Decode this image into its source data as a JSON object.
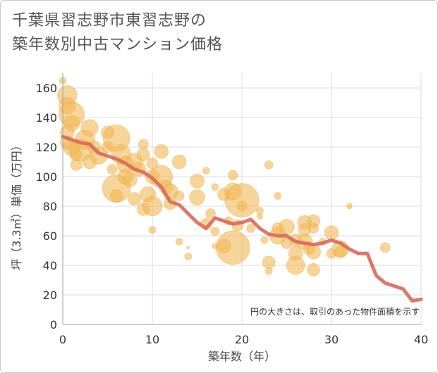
{
  "title": "千葉県習志野市東習志野の\n築年数別中古マンション価格",
  "chart_data": {
    "type": "scatter",
    "title": "千葉県習志野市東習志野の築年数別中古マンション価格",
    "xlabel": "築年数（年）",
    "ylabel": "坪（3.3㎡）単価（万円）",
    "xlim": [
      0,
      40
    ],
    "ylim": [
      0,
      170
    ],
    "xticks": [
      "0",
      "10",
      "20",
      "30",
      "40"
    ],
    "yticks": [
      "0",
      "20",
      "40",
      "60",
      "80",
      "100",
      "120",
      "140",
      "160"
    ],
    "grid": true,
    "annotation": "円の大きさは、取引のあった物件面積を示す",
    "colors": {
      "bubble": "#f2b756",
      "trend": "#d66a5a"
    },
    "trend_line": {
      "x": [
        0,
        1,
        2,
        3,
        4,
        5,
        6,
        7,
        8,
        9,
        10,
        11,
        12,
        13,
        14,
        15,
        16,
        17,
        18,
        19,
        20,
        21,
        22,
        23,
        24,
        25,
        26,
        27,
        28,
        29,
        30,
        31,
        32,
        33,
        34,
        35,
        36,
        37,
        38,
        39,
        40
      ],
      "y": [
        127,
        125,
        123,
        122,
        116,
        114,
        112,
        109,
        105,
        103,
        99,
        93,
        83,
        81,
        75,
        69,
        65,
        72,
        70,
        68,
        69,
        71,
        65,
        61,
        60,
        60,
        56,
        55,
        54,
        55,
        57,
        55,
        51,
        48,
        48,
        33,
        28,
        26,
        24,
        16,
        17
      ]
    },
    "points": [
      {
        "x": 0,
        "y": 165,
        "s": 5
      },
      {
        "x": 0.5,
        "y": 155,
        "s": 14
      },
      {
        "x": 0.5,
        "y": 148,
        "s": 12
      },
      {
        "x": 1,
        "y": 142,
        "s": 18
      },
      {
        "x": 1,
        "y": 136,
        "s": 11
      },
      {
        "x": 0.5,
        "y": 130,
        "s": 10
      },
      {
        "x": 0.5,
        "y": 123,
        "s": 10
      },
      {
        "x": 1,
        "y": 120,
        "s": 12
      },
      {
        "x": 1.5,
        "y": 115,
        "s": 9
      },
      {
        "x": 1.5,
        "y": 108,
        "s": 8
      },
      {
        "x": 2,
        "y": 118,
        "s": 16
      },
      {
        "x": 2.5,
        "y": 125,
        "s": 14
      },
      {
        "x": 3,
        "y": 110,
        "s": 10
      },
      {
        "x": 3,
        "y": 133,
        "s": 12
      },
      {
        "x": 3.5,
        "y": 120,
        "s": 9
      },
      {
        "x": 4,
        "y": 114,
        "s": 12
      },
      {
        "x": 5,
        "y": 130,
        "s": 9
      },
      {
        "x": 5,
        "y": 120,
        "s": 8
      },
      {
        "x": 5.5,
        "y": 105,
        "s": 7
      },
      {
        "x": 6,
        "y": 126,
        "s": 19
      },
      {
        "x": 6,
        "y": 92,
        "s": 20
      },
      {
        "x": 6,
        "y": 87,
        "s": 9
      },
      {
        "x": 6.5,
        "y": 115,
        "s": 14
      },
      {
        "x": 7,
        "y": 108,
        "s": 12
      },
      {
        "x": 7,
        "y": 100,
        "s": 11
      },
      {
        "x": 7.5,
        "y": 98,
        "s": 10
      },
      {
        "x": 8,
        "y": 110,
        "s": 12
      },
      {
        "x": 8,
        "y": 85,
        "s": 9
      },
      {
        "x": 8.5,
        "y": 105,
        "s": 10
      },
      {
        "x": 9,
        "y": 122,
        "s": 7
      },
      {
        "x": 9,
        "y": 115,
        "s": 9
      },
      {
        "x": 9,
        "y": 78,
        "s": 9
      },
      {
        "x": 9.5,
        "y": 88,
        "s": 11
      },
      {
        "x": 10,
        "y": 109,
        "s": 8
      },
      {
        "x": 10,
        "y": 100,
        "s": 10
      },
      {
        "x": 10,
        "y": 80,
        "s": 14
      },
      {
        "x": 10,
        "y": 64,
        "s": 5
      },
      {
        "x": 11,
        "y": 117,
        "s": 10
      },
      {
        "x": 11,
        "y": 100,
        "s": 16
      },
      {
        "x": 11.5,
        "y": 93,
        "s": 10
      },
      {
        "x": 12,
        "y": 90,
        "s": 11
      },
      {
        "x": 12,
        "y": 82,
        "s": 9
      },
      {
        "x": 13,
        "y": 110,
        "s": 10
      },
      {
        "x": 13,
        "y": 87,
        "s": 7
      },
      {
        "x": 13,
        "y": 56,
        "s": 5
      },
      {
        "x": 14,
        "y": 46,
        "s": 5
      },
      {
        "x": 14,
        "y": 52,
        "s": 2
      },
      {
        "x": 15,
        "y": 97,
        "s": 10
      },
      {
        "x": 15,
        "y": 86,
        "s": 11
      },
      {
        "x": 16,
        "y": 104,
        "s": 5
      },
      {
        "x": 16,
        "y": 68,
        "s": 8
      },
      {
        "x": 16.5,
        "y": 75,
        "s": 7
      },
      {
        "x": 17,
        "y": 93,
        "s": 5
      },
      {
        "x": 17,
        "y": 63,
        "s": 6
      },
      {
        "x": 17,
        "y": 53,
        "s": 4
      },
      {
        "x": 18,
        "y": 88,
        "s": 9
      },
      {
        "x": 18,
        "y": 53,
        "s": 10
      },
      {
        "x": 18.5,
        "y": 70,
        "s": 6
      },
      {
        "x": 19,
        "y": 101,
        "s": 7
      },
      {
        "x": 19,
        "y": 90,
        "s": 12
      },
      {
        "x": 19,
        "y": 52,
        "s": 24
      },
      {
        "x": 19.5,
        "y": 67,
        "s": 8
      },
      {
        "x": 20,
        "y": 84,
        "s": 24
      },
      {
        "x": 20,
        "y": 80,
        "s": 7
      },
      {
        "x": 21,
        "y": 65,
        "s": 6
      },
      {
        "x": 22,
        "y": 77,
        "s": 5
      },
      {
        "x": 22,
        "y": 73,
        "s": 4
      },
      {
        "x": 22.5,
        "y": 57,
        "s": 5
      },
      {
        "x": 23,
        "y": 108,
        "s": 6
      },
      {
        "x": 23,
        "y": 42,
        "s": 9
      },
      {
        "x": 23,
        "y": 36,
        "s": 5
      },
      {
        "x": 24,
        "y": 87,
        "s": 5
      },
      {
        "x": 24,
        "y": 65,
        "s": 8
      },
      {
        "x": 24,
        "y": 60,
        "s": 12
      },
      {
        "x": 25,
        "y": 66,
        "s": 11
      },
      {
        "x": 25,
        "y": 55,
        "s": 8
      },
      {
        "x": 26,
        "y": 57,
        "s": 9
      },
      {
        "x": 26,
        "y": 48,
        "s": 10
      },
      {
        "x": 26,
        "y": 40,
        "s": 13
      },
      {
        "x": 27,
        "y": 69,
        "s": 10
      },
      {
        "x": 27,
        "y": 64,
        "s": 9
      },
      {
        "x": 27,
        "y": 56,
        "s": 11
      },
      {
        "x": 27.5,
        "y": 51,
        "s": 8
      },
      {
        "x": 28,
        "y": 70,
        "s": 9
      },
      {
        "x": 28,
        "y": 65,
        "s": 7
      },
      {
        "x": 28,
        "y": 49,
        "s": 10
      },
      {
        "x": 28,
        "y": 37,
        "s": 9
      },
      {
        "x": 29,
        "y": 56,
        "s": 5
      },
      {
        "x": 30,
        "y": 62,
        "s": 10
      },
      {
        "x": 30,
        "y": 48,
        "s": 7
      },
      {
        "x": 31,
        "y": 51,
        "s": 12
      },
      {
        "x": 31,
        "y": 49,
        "s": 8
      },
      {
        "x": 32,
        "y": 80,
        "s": 4
      },
      {
        "x": 36,
        "y": 52,
        "s": 7
      }
    ]
  }
}
